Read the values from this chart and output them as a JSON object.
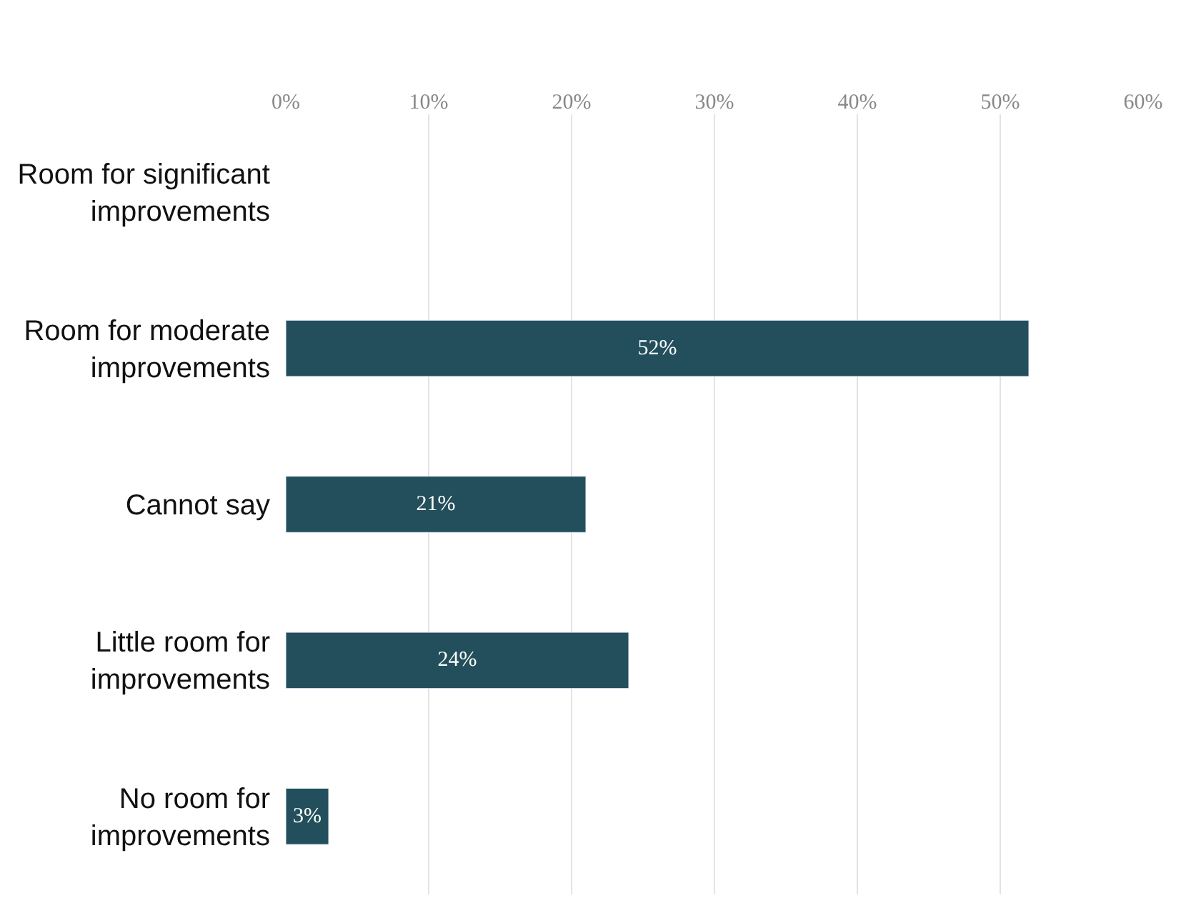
{
  "chart_data": {
    "type": "bar",
    "orientation": "horizontal",
    "categories": [
      "Room for significant improvements",
      "Room for moderate improvements",
      "Cannot say",
      "Little room for improvements",
      "No room for improvements"
    ],
    "values": [
      null,
      52,
      21,
      24,
      3
    ],
    "value_labels": [
      null,
      "52%",
      "21%",
      "24%",
      "3%"
    ],
    "color": "#234f5c",
    "xlim": [
      0,
      60
    ],
    "xticks": [
      {
        "value": 0,
        "label": "0%"
      },
      {
        "value": 10,
        "label": "10%"
      },
      {
        "value": 20,
        "label": "20%"
      },
      {
        "value": 30,
        "label": "30%"
      },
      {
        "value": 40,
        "label": "40%"
      },
      {
        "value": 50,
        "label": "50%"
      },
      {
        "value": 60,
        "label": "60%"
      }
    ],
    "grid": "x"
  }
}
